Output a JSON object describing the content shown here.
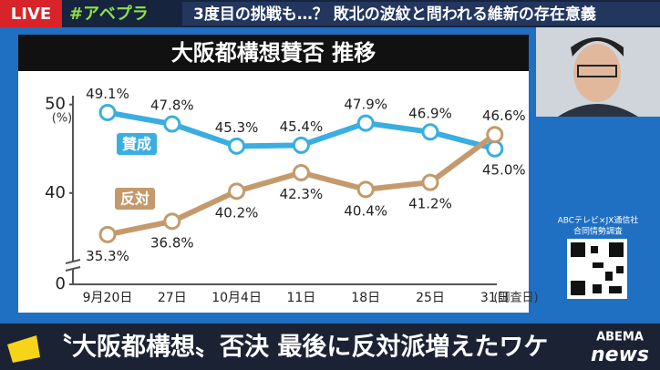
{
  "broadcast": {
    "live": "LIVE",
    "hashtag": "#アベプラ",
    "headline": "3度目の挑戦も…？ 敗北の波紋と問われる維新の存在意義",
    "caption": "〝大阪都構想〟否決 最後に反対派増えたワケ",
    "logo_top": "ABEMA",
    "logo_bottom": "news",
    "source": "ABCテレビ×JX通信社",
    "source_sub": "合同情勢調査"
  },
  "chart_data": {
    "type": "line",
    "title": "大阪都構想賛否 推移",
    "y_label": "(%)",
    "x_label": "(調査日)",
    "categories": [
      "9月20日",
      "27日",
      "10月4日",
      "11日",
      "18日",
      "25日",
      "31日"
    ],
    "series": [
      {
        "name": "賛成",
        "color": "#3aaee0",
        "values": [
          49.1,
          47.8,
          45.3,
          45.4,
          47.9,
          46.9,
          45.0
        ],
        "value_labels": [
          "49.1%",
          "47.8%",
          "45.3%",
          "45.4%",
          "47.9%",
          "46.9%",
          "45.0%"
        ]
      },
      {
        "name": "反対",
        "color": "#c49a6c",
        "values": [
          35.3,
          36.8,
          40.2,
          42.3,
          40.4,
          41.2,
          46.6
        ],
        "value_labels": [
          "35.3%",
          "36.8%",
          "40.2%",
          "42.3%",
          "40.4%",
          "41.2%",
          "46.6%"
        ]
      }
    ],
    "ylim": [
      0,
      51
    ],
    "yticks": [
      0,
      40,
      50
    ],
    "axis_break": [
      0,
      34
    ],
    "grid": false
  }
}
